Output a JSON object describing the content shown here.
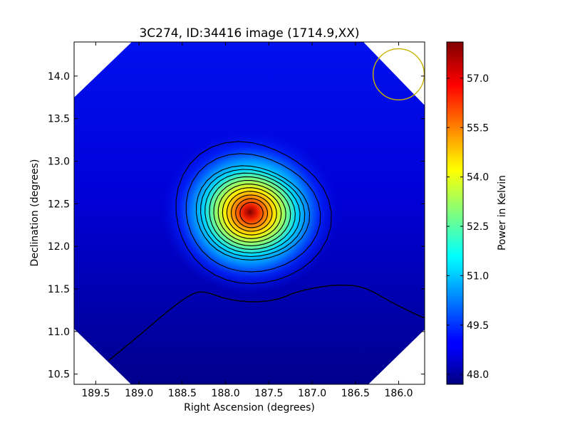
{
  "chart_data": {
    "type": "heatmap",
    "title": "3C274, ID:34416 image (1714.9,XX)",
    "xlabel": "Right Ascension (degrees)",
    "ylabel": "Declination (degrees)",
    "xlim": [
      189.75,
      185.7
    ],
    "ylim": [
      10.38,
      14.4
    ],
    "x_ticks": [
      {
        "value": 189.5,
        "label": "189.5"
      },
      {
        "value": 189.0,
        "label": "189.0"
      },
      {
        "value": 188.5,
        "label": "188.5"
      },
      {
        "value": 188.0,
        "label": "188.0"
      },
      {
        "value": 187.5,
        "label": "187.5"
      },
      {
        "value": 187.0,
        "label": "187.0"
      },
      {
        "value": 186.5,
        "label": "186.5"
      },
      {
        "value": 186.0,
        "label": "186.0"
      }
    ],
    "y_ticks": [
      {
        "value": 10.5,
        "label": "10.5"
      },
      {
        "value": 11.0,
        "label": "11.0"
      },
      {
        "value": 11.5,
        "label": "11.5"
      },
      {
        "value": 12.0,
        "label": "12.0"
      },
      {
        "value": 12.5,
        "label": "12.5"
      },
      {
        "value": 13.0,
        "label": "13.0"
      },
      {
        "value": 13.5,
        "label": "13.5"
      },
      {
        "value": 14.0,
        "label": "14.0"
      }
    ],
    "colorbar": {
      "label": "Power in Kelvin",
      "colormap": "jet",
      "range": [
        47.7,
        58.1
      ],
      "ticks": [
        {
          "value": 48.0,
          "label": "48.0"
        },
        {
          "value": 49.5,
          "label": "49.5"
        },
        {
          "value": 51.0,
          "label": "51.0"
        },
        {
          "value": 52.5,
          "label": "52.5"
        },
        {
          "value": 54.0,
          "label": "54.0"
        },
        {
          "value": 55.5,
          "label": "55.5"
        },
        {
          "value": 57.0,
          "label": "57.0"
        }
      ]
    },
    "source": {
      "name": "3C274",
      "ra": 187.7,
      "dec": 12.39,
      "peak": 58.0
    },
    "background_level": 48.4,
    "beam": {
      "ra": 186.0,
      "dec": 14.02,
      "radius_deg": 0.3,
      "color": "#c8b400"
    },
    "contour_count": 13,
    "low_contour": [
      [
        189.35,
        10.66
      ],
      [
        189.0,
        10.95
      ],
      [
        188.6,
        11.3
      ],
      [
        188.35,
        11.47
      ],
      [
        188.2,
        11.46
      ],
      [
        188.0,
        11.38
      ],
      [
        187.7,
        11.34
      ],
      [
        187.4,
        11.37
      ],
      [
        187.2,
        11.46
      ],
      [
        186.95,
        11.52
      ],
      [
        186.7,
        11.55
      ],
      [
        186.4,
        11.53
      ],
      [
        186.1,
        11.35
      ],
      [
        185.8,
        11.2
      ],
      [
        185.7,
        11.16
      ]
    ],
    "grid": false,
    "legend": "none"
  }
}
